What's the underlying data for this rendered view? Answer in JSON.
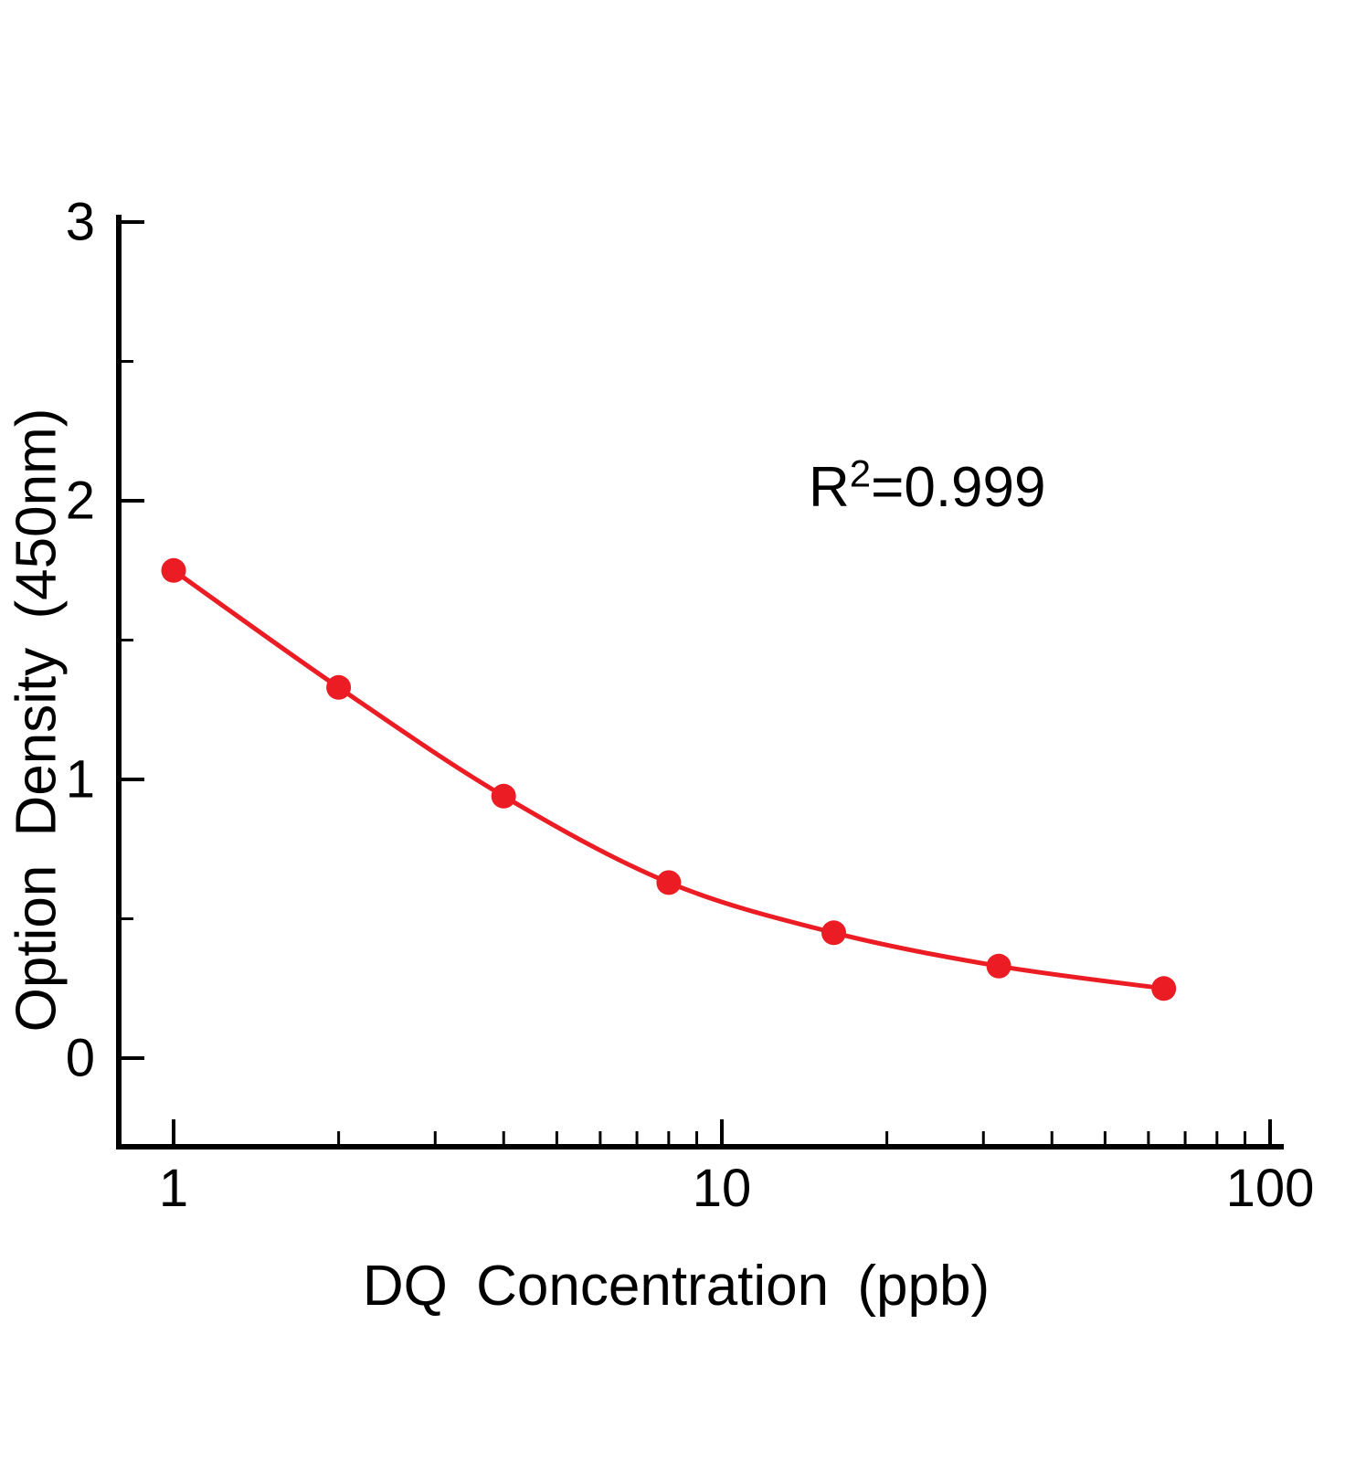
{
  "chart_data": {
    "type": "line",
    "x": [
      1,
      2,
      4,
      8,
      16,
      32,
      64
    ],
    "y": [
      1.75,
      1.33,
      0.94,
      0.63,
      0.45,
      0.33,
      0.25
    ],
    "title": "",
    "xlabel": "DQ Concentration (ppb)",
    "ylabel": "Option Density (450nm)",
    "annotation": {
      "base": "R",
      "sup": "2",
      "rest": "=0.999",
      "text": "R²=0.999"
    },
    "x_scale": "log",
    "xlim": [
      0.8,
      110
    ],
    "ylim": [
      -0.32,
      3
    ],
    "x_ticks": [
      1,
      10,
      100
    ],
    "x_tick_labels": [
      "1",
      "10",
      "100"
    ],
    "y_ticks": [
      0,
      1,
      2,
      3
    ],
    "y_tick_labels": [
      "0",
      "1",
      "2",
      "3"
    ],
    "x_minor_ticks": [
      2,
      3,
      4,
      5,
      6,
      7,
      8,
      9,
      20,
      30,
      40,
      50,
      60,
      70,
      80,
      90
    ],
    "y_minor_ticks": [
      0.5,
      1.5,
      2.5
    ],
    "grid": false,
    "legend": "none",
    "colors": {
      "curve": "#ec1c24",
      "points": "#ec1c24",
      "axis": "#000000",
      "text": "#000000",
      "background": "#ffffff"
    }
  }
}
